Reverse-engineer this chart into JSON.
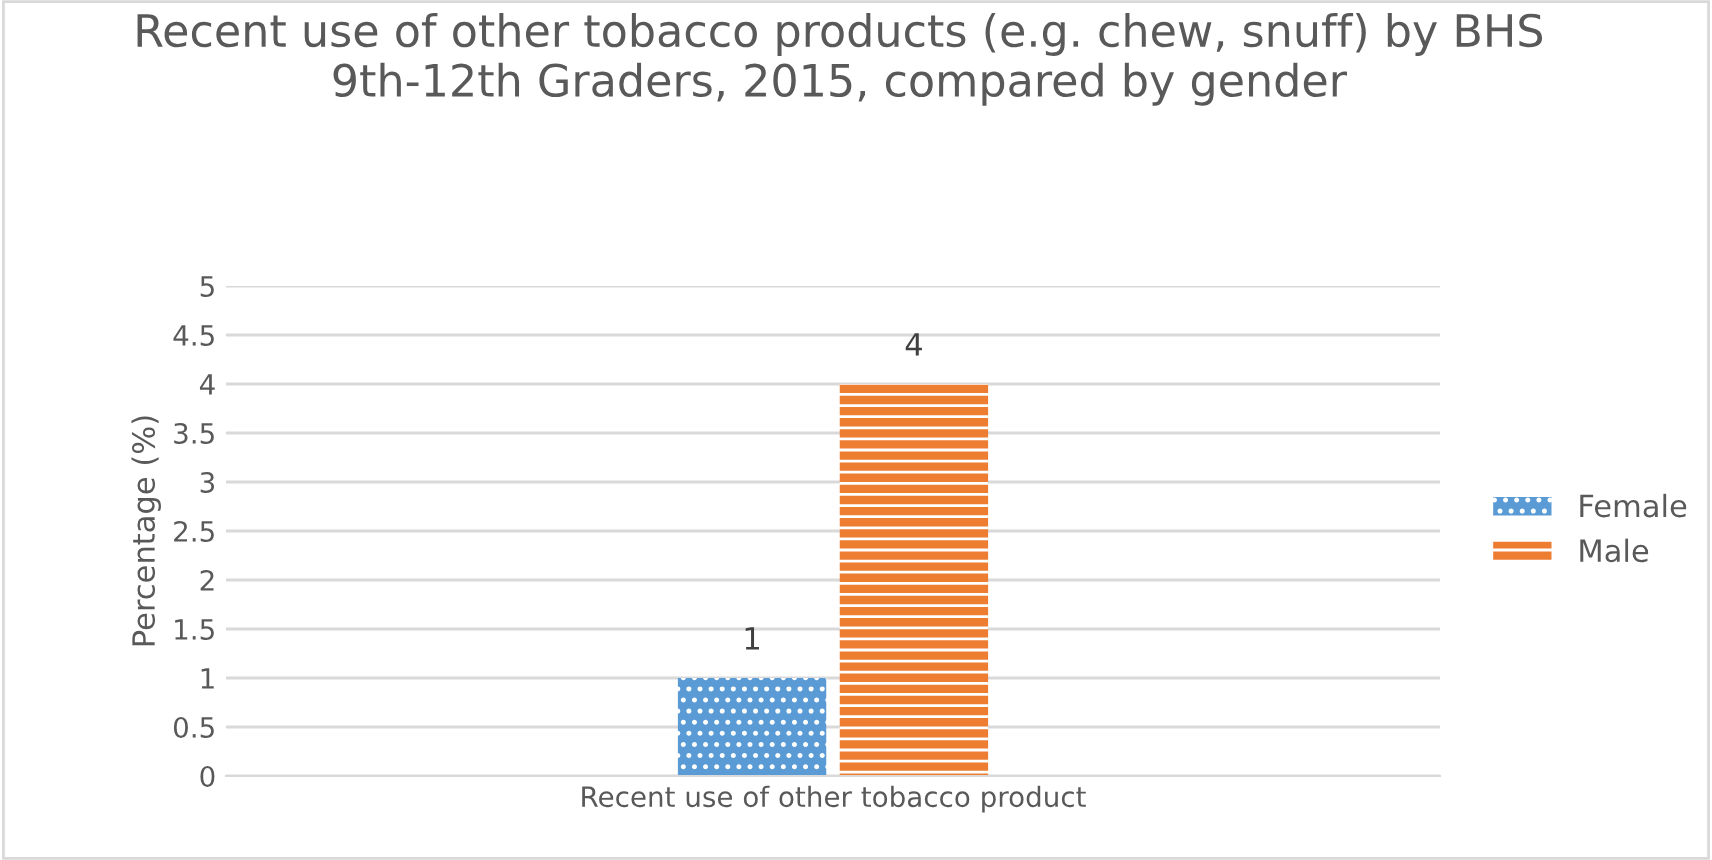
{
  "chart_data": {
    "type": "bar",
    "title": "Recent use of other tobacco products (e.g. chew, snuff) by BHS 9th-12th Graders, 2015, compared by gender",
    "ylabel": "Percentage (%)",
    "categories": [
      "Recent use of other tobacco product"
    ],
    "series": [
      {
        "name": "Female",
        "color": "#5b9bd5",
        "values": [
          1
        ]
      },
      {
        "name": "Male",
        "color": "#ed7d31",
        "values": [
          4
        ]
      }
    ],
    "ylim": [
      0,
      5
    ],
    "yticks": [
      0,
      0.5,
      1,
      1.5,
      2,
      2.5,
      3,
      3.5,
      4,
      4.5,
      5
    ],
    "grid": "y",
    "legend": "right",
    "data_labels": true
  }
}
